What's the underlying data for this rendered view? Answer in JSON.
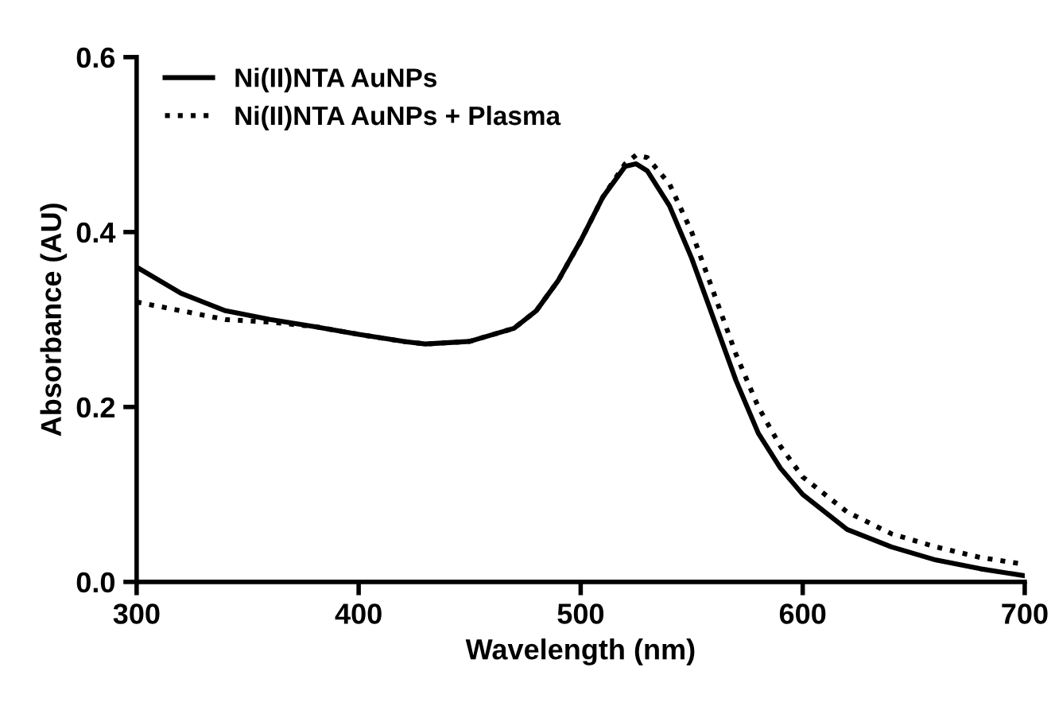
{
  "chart_data": {
    "type": "line",
    "xlabel": "Wavelength (nm)",
    "ylabel": "Absorbance (AU)",
    "x": [
      300,
      320,
      340,
      360,
      380,
      400,
      420,
      430,
      450,
      470,
      480,
      490,
      500,
      510,
      520,
      525,
      530,
      540,
      550,
      560,
      570,
      580,
      590,
      600,
      620,
      640,
      660,
      680,
      700
    ],
    "series": [
      {
        "name": "Ni(II)NTA AuNPs",
        "color": "#000000",
        "line_style": "solid",
        "values": [
          0.36,
          0.33,
          0.31,
          0.3,
          0.292,
          0.283,
          0.275,
          0.272,
          0.275,
          0.29,
          0.31,
          0.345,
          0.39,
          0.44,
          0.475,
          0.478,
          0.47,
          0.43,
          0.37,
          0.3,
          0.23,
          0.17,
          0.13,
          0.1,
          0.06,
          0.04,
          0.025,
          0.015,
          0.007
        ]
      },
      {
        "name": "Ni(II)NTA AuNPs + Plasma",
        "color": "#000000",
        "line_style": "dotted",
        "values": [
          0.32,
          0.31,
          0.3,
          0.297,
          0.292,
          0.283,
          0.275,
          0.272,
          0.275,
          0.29,
          0.31,
          0.345,
          0.39,
          0.44,
          0.478,
          0.488,
          0.485,
          0.455,
          0.4,
          0.33,
          0.26,
          0.2,
          0.155,
          0.12,
          0.08,
          0.055,
          0.04,
          0.028,
          0.02
        ]
      }
    ],
    "xlim": [
      300,
      700
    ],
    "xticks": [
      300,
      400,
      500,
      600,
      700
    ],
    "ylim": [
      0.0,
      0.6
    ],
    "yticks": [
      {
        "value": 0.0,
        "label": "0.0"
      },
      {
        "value": 0.2,
        "label": "0.2"
      },
      {
        "value": 0.4,
        "label": "0.4"
      },
      {
        "value": 0.6,
        "label": "0.6"
      }
    ],
    "grid": false,
    "legend": "top left"
  }
}
